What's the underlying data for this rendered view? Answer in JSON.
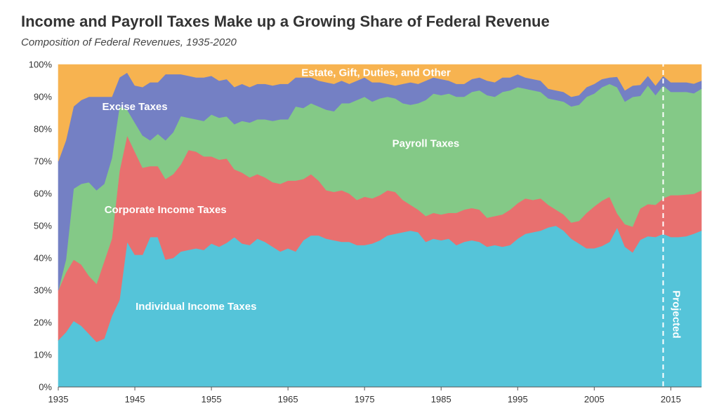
{
  "title": "Income and Payroll Taxes Make up a Growing Share of Federal Revenue",
  "subtitle": "Composition of Federal Revenues, 1935-2020",
  "chart_data": {
    "type": "area",
    "stacked": true,
    "percent": true,
    "xlim": [
      1935,
      2019
    ],
    "ylim": [
      0,
      100
    ],
    "x_ticks": [
      1935,
      1945,
      1955,
      1965,
      1975,
      1985,
      1995,
      2005,
      2015
    ],
    "y_ticks": [
      "0%",
      "10%",
      "20%",
      "30%",
      "40%",
      "50%",
      "60%",
      "70%",
      "80%",
      "90%",
      "100%"
    ],
    "projected_from": 2014,
    "projected_label": "Projected",
    "x": [
      1935,
      1936,
      1937,
      1938,
      1939,
      1940,
      1941,
      1942,
      1943,
      1944,
      1945,
      1946,
      1947,
      1948,
      1949,
      1950,
      1951,
      1952,
      1953,
      1954,
      1955,
      1956,
      1957,
      1958,
      1959,
      1960,
      1961,
      1962,
      1963,
      1964,
      1965,
      1966,
      1967,
      1968,
      1969,
      1970,
      1971,
      1972,
      1973,
      1974,
      1975,
      1976,
      1977,
      1978,
      1979,
      1980,
      1981,
      1982,
      1983,
      1984,
      1985,
      1986,
      1987,
      1988,
      1989,
      1990,
      1991,
      1992,
      1993,
      1994,
      1995,
      1996,
      1997,
      1998,
      1999,
      2000,
      2001,
      2002,
      2003,
      2004,
      2005,
      2006,
      2007,
      2008,
      2009,
      2010,
      2011,
      2012,
      2013,
      2014,
      2015,
      2016,
      2017,
      2018,
      2019
    ],
    "series": [
      {
        "name": "Individual Income Taxes",
        "color": "#55c4d9",
        "values": [
          14.5,
          17,
          20.5,
          19,
          16.5,
          14,
          15,
          22,
          27,
          45,
          41,
          41,
          46.5,
          46.5,
          39.5,
          40,
          42,
          42.5,
          43,
          42.5,
          44.5,
          43.5,
          44.5,
          46.5,
          44.5,
          44,
          46,
          45,
          43.5,
          42,
          43,
          42,
          45.5,
          47,
          47,
          46,
          45.5,
          45,
          45,
          44,
          44,
          44.5,
          45.5,
          47,
          47.5,
          48,
          48.5,
          48,
          45,
          46,
          45.5,
          46,
          44,
          45,
          45.5,
          45,
          43.5,
          44,
          43.5,
          44,
          46,
          47.5,
          48,
          48.5,
          49.5,
          50,
          48.5,
          46,
          44.5,
          43,
          43,
          43.5,
          45,
          45.5,
          43.5,
          41.5,
          47,
          47,
          46.5,
          47.5,
          46.5,
          46.5,
          47,
          48,
          48.5
        ]
      },
      {
        "name": "Corporate Income Taxes",
        "color": "#e8706f",
        "values": [
          15.5,
          18.5,
          19,
          19,
          18,
          18,
          24,
          24,
          40,
          33,
          32,
          27,
          22,
          22,
          25,
          26,
          27,
          31,
          30,
          29,
          27,
          27,
          26,
          21,
          22,
          21,
          20,
          20,
          20,
          21,
          21,
          22,
          19,
          19,
          17,
          15,
          15,
          16,
          15,
          14,
          15,
          14,
          14,
          14,
          13,
          10,
          8,
          7,
          8,
          8,
          8,
          8,
          10,
          10,
          10,
          10,
          9,
          9,
          10,
          11,
          11,
          11,
          10,
          10,
          7,
          5,
          5,
          5,
          7,
          11,
          13,
          14,
          14,
          4,
          7,
          8,
          10,
          10,
          10,
          11,
          13,
          13,
          13,
          12.5,
          12.5
        ]
      },
      {
        "name": "Payroll Taxes",
        "color": "#84c987",
        "values": [
          0,
          4,
          22,
          25,
          29,
          29,
          24,
          25,
          20,
          8,
          9,
          10,
          8,
          10,
          12,
          13,
          15,
          10,
          10,
          11,
          13,
          13,
          13,
          14,
          16,
          17,
          17,
          18,
          19,
          20,
          19,
          23,
          22,
          22,
          23,
          25,
          25,
          27,
          28,
          31,
          31,
          30,
          30,
          29,
          29,
          30,
          31,
          33,
          36,
          37,
          37,
          37,
          36,
          35,
          36,
          37,
          38,
          37,
          38,
          37,
          36,
          34,
          34,
          33,
          33,
          34,
          35,
          36,
          36,
          36,
          35,
          35,
          35,
          36,
          38,
          40,
          36,
          37,
          34,
          35,
          32,
          32,
          32,
          31.5,
          31.5
        ]
      },
      {
        "name": "Excise Taxes",
        "color": "#7480c4",
        "values": [
          40,
          37,
          25.5,
          26,
          26.5,
          29,
          27,
          19,
          9,
          11.5,
          11.5,
          15,
          18,
          16,
          20.5,
          18,
          13,
          13,
          13,
          13.5,
          12,
          11.5,
          11.5,
          11.5,
          11.5,
          11,
          11,
          11,
          11,
          11,
          11,
          9,
          9.5,
          8,
          8,
          8.5,
          8.5,
          7,
          6,
          6,
          6,
          6,
          5,
          4,
          4,
          6,
          7,
          6,
          6,
          5,
          5,
          4,
          4,
          4,
          4,
          4,
          4.5,
          4.5,
          4.5,
          4,
          4,
          3.5,
          3.5,
          3.5,
          3,
          3,
          3,
          3,
          3,
          3,
          3,
          2.5,
          2,
          3,
          3.5,
          3.5,
          3.5,
          3,
          3,
          3,
          3,
          3,
          3,
          3,
          2.5
        ]
      },
      {
        "name": "Estate, Gift, Duties, and Other",
        "color": "#f7b350",
        "values": [
          30,
          23.5,
          13,
          11,
          10,
          10,
          10,
          10,
          4,
          2.5,
          6.5,
          7,
          5.5,
          5.5,
          3,
          3,
          3,
          3.5,
          4,
          4,
          3.5,
          5,
          4.5,
          7,
          6,
          7,
          6,
          6,
          6.5,
          6,
          6,
          4,
          4,
          4,
          5,
          5.5,
          6,
          5,
          6,
          5,
          4,
          5.5,
          5.5,
          6,
          6.5,
          6,
          5.5,
          6,
          5,
          4,
          4.5,
          5,
          6,
          6,
          4.5,
          4,
          5,
          5.5,
          4,
          4,
          3,
          4,
          4.5,
          5,
          7.5,
          8,
          8.5,
          10,
          9.5,
          7,
          6,
          4.5,
          4,
          3.5,
          8,
          6.5,
          6.5,
          3.5,
          6.5,
          3.5,
          5.5,
          5.5,
          5.5,
          6,
          5
        ]
      }
    ],
    "series_label_positions": [
      {
        "series": 0,
        "x": 1953,
        "y": 25
      },
      {
        "series": 1,
        "x": 1949,
        "y": 55
      },
      {
        "series": 2,
        "x": 1983,
        "y": 75.5
      },
      {
        "series": 3,
        "x": 1945,
        "y": 87
      },
      {
        "series": 4,
        "x": 1976.5,
        "y": 97.5
      }
    ]
  }
}
